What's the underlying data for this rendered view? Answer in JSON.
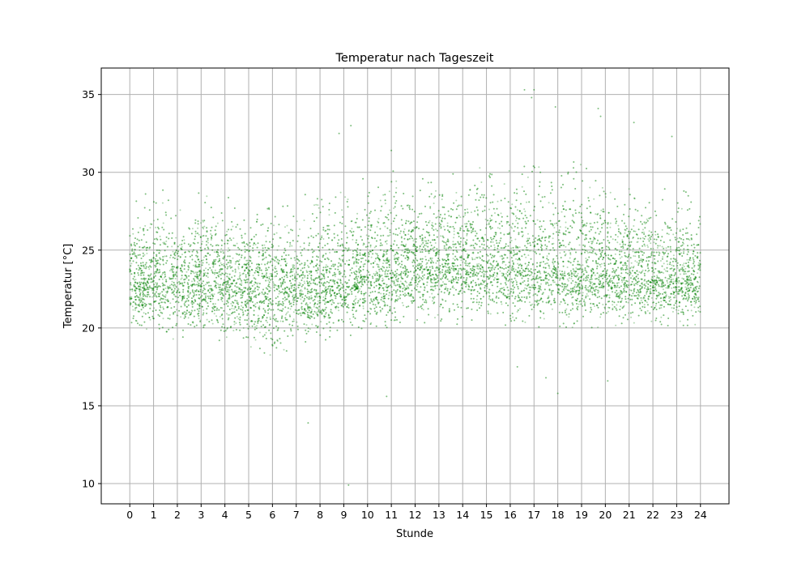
{
  "chart_data": {
    "type": "scatter",
    "title": "Temperatur nach Tageszeit",
    "xlabel": "Stunde",
    "ylabel": "Temperatur [°C]",
    "xlim": [
      -1.2,
      25.2
    ],
    "ylim": [
      8.7,
      36.7
    ],
    "xticks": [
      0,
      1,
      2,
      3,
      4,
      5,
      6,
      7,
      8,
      9,
      10,
      11,
      12,
      13,
      14,
      15,
      16,
      17,
      18,
      19,
      20,
      21,
      22,
      23,
      24
    ],
    "yticks": [
      10,
      15,
      20,
      25,
      30,
      35
    ],
    "grid": true,
    "marker_color": "#008000",
    "marker_alpha": 0.3,
    "hourly_profile": [
      {
        "hour": 0,
        "low": 21.0,
        "median": 23.0,
        "high": 26.5
      },
      {
        "hour": 1,
        "low": 20.8,
        "median": 23.0,
        "high": 26.6
      },
      {
        "hour": 2,
        "low": 20.6,
        "median": 22.9,
        "high": 26.4
      },
      {
        "hour": 3,
        "low": 20.5,
        "median": 22.8,
        "high": 26.3
      },
      {
        "hour": 4,
        "low": 20.4,
        "median": 22.8,
        "high": 26.2
      },
      {
        "hour": 5,
        "low": 20.0,
        "median": 22.8,
        "high": 26.3
      },
      {
        "hour": 6,
        "low": 19.3,
        "median": 22.6,
        "high": 26.1
      },
      {
        "hour": 7,
        "low": 20.2,
        "median": 22.5,
        "high": 26.0
      },
      {
        "hour": 8,
        "low": 20.3,
        "median": 22.6,
        "high": 26.3
      },
      {
        "hour": 9,
        "low": 20.8,
        "median": 23.0,
        "high": 27.0
      },
      {
        "hour": 10,
        "low": 21.1,
        "median": 23.4,
        "high": 27.5
      },
      {
        "hour": 11,
        "low": 21.4,
        "median": 23.7,
        "high": 27.8
      },
      {
        "hour": 12,
        "low": 21.6,
        "median": 23.9,
        "high": 28.0
      },
      {
        "hour": 13,
        "low": 21.7,
        "median": 24.0,
        "high": 28.1
      },
      {
        "hour": 14,
        "low": 21.7,
        "median": 24.1,
        "high": 28.2
      },
      {
        "hour": 15,
        "low": 21.7,
        "median": 24.1,
        "high": 28.4
      },
      {
        "hour": 16,
        "low": 21.6,
        "median": 24.0,
        "high": 28.6
      },
      {
        "hour": 17,
        "low": 21.4,
        "median": 23.8,
        "high": 28.8
      },
      {
        "hour": 18,
        "low": 21.3,
        "median": 23.6,
        "high": 28.5
      },
      {
        "hour": 19,
        "low": 21.3,
        "median": 23.5,
        "high": 28.6
      },
      {
        "hour": 20,
        "low": 21.4,
        "median": 23.4,
        "high": 27.5
      },
      {
        "hour": 21,
        "low": 21.3,
        "median": 23.2,
        "high": 27.0
      },
      {
        "hour": 22,
        "low": 21.2,
        "median": 23.1,
        "high": 26.8
      },
      {
        "hour": 23,
        "low": 21.2,
        "median": 23.2,
        "high": 26.9
      },
      {
        "hour": 24,
        "low": 21.1,
        "median": 23.1,
        "high": 26.7
      }
    ],
    "outliers": [
      {
        "x": 7.5,
        "y": 13.9
      },
      {
        "x": 9.2,
        "y": 9.9
      },
      {
        "x": 9.3,
        "y": 33.0
      },
      {
        "x": 10.8,
        "y": 15.6
      },
      {
        "x": 11.0,
        "y": 31.4
      },
      {
        "x": 16.6,
        "y": 35.3
      },
      {
        "x": 17.0,
        "y": 35.3
      },
      {
        "x": 16.9,
        "y": 34.8
      },
      {
        "x": 17.9,
        "y": 34.2
      },
      {
        "x": 18.0,
        "y": 15.8
      },
      {
        "x": 19.7,
        "y": 34.1
      },
      {
        "x": 19.8,
        "y": 33.6
      },
      {
        "x": 20.1,
        "y": 16.6
      },
      {
        "x": 21.2,
        "y": 33.2
      },
      {
        "x": 22.8,
        "y": 32.3
      },
      {
        "x": 8.8,
        "y": 32.5
      },
      {
        "x": 16.3,
        "y": 17.5
      },
      {
        "x": 17.5,
        "y": 16.8
      }
    ]
  }
}
